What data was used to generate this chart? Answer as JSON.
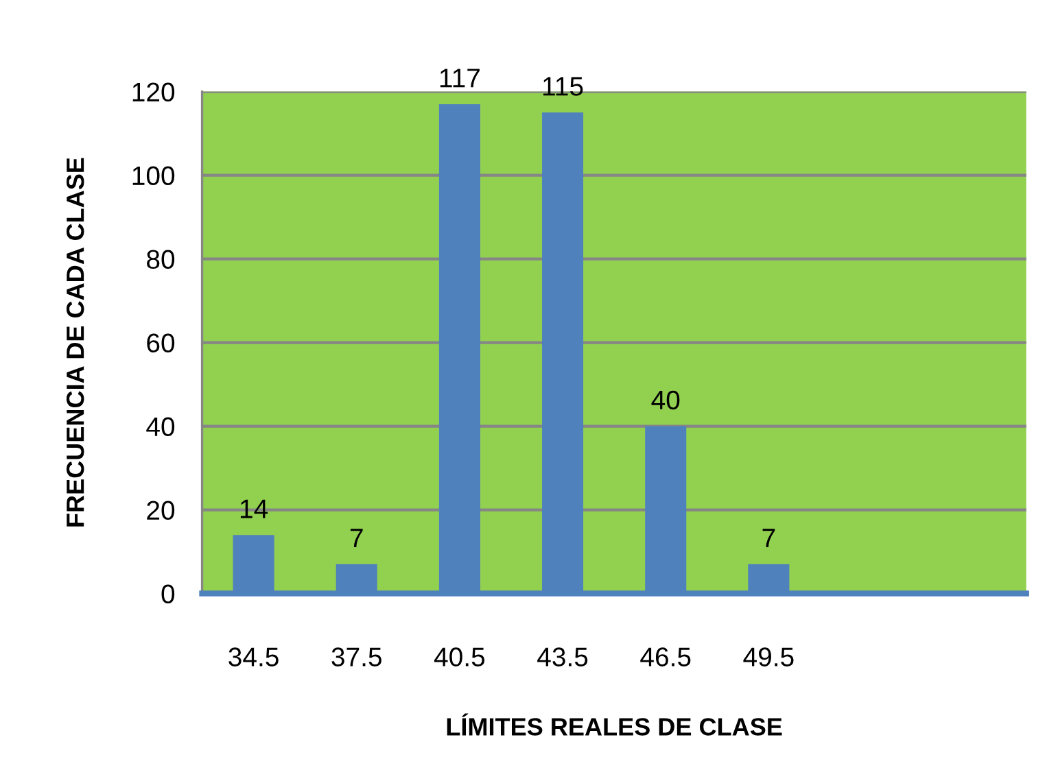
{
  "chart_data": {
    "type": "bar",
    "xlabel": "LÍMITES REALES DE CLASE",
    "ylabel": "FRECUENCIA DE CADA CLASE",
    "categories": [
      "34.5",
      "37.5",
      "40.5",
      "43.5",
      "46.5",
      "49.5",
      null,
      null
    ],
    "values": [
      14,
      7,
      117,
      115,
      40,
      7,
      null,
      null
    ],
    "color": "#4f81bd",
    "ylim": [
      0,
      120
    ],
    "yticks": [
      0,
      20,
      40,
      60,
      80,
      100,
      120
    ],
    "grid": "y",
    "data_labels": true
  }
}
